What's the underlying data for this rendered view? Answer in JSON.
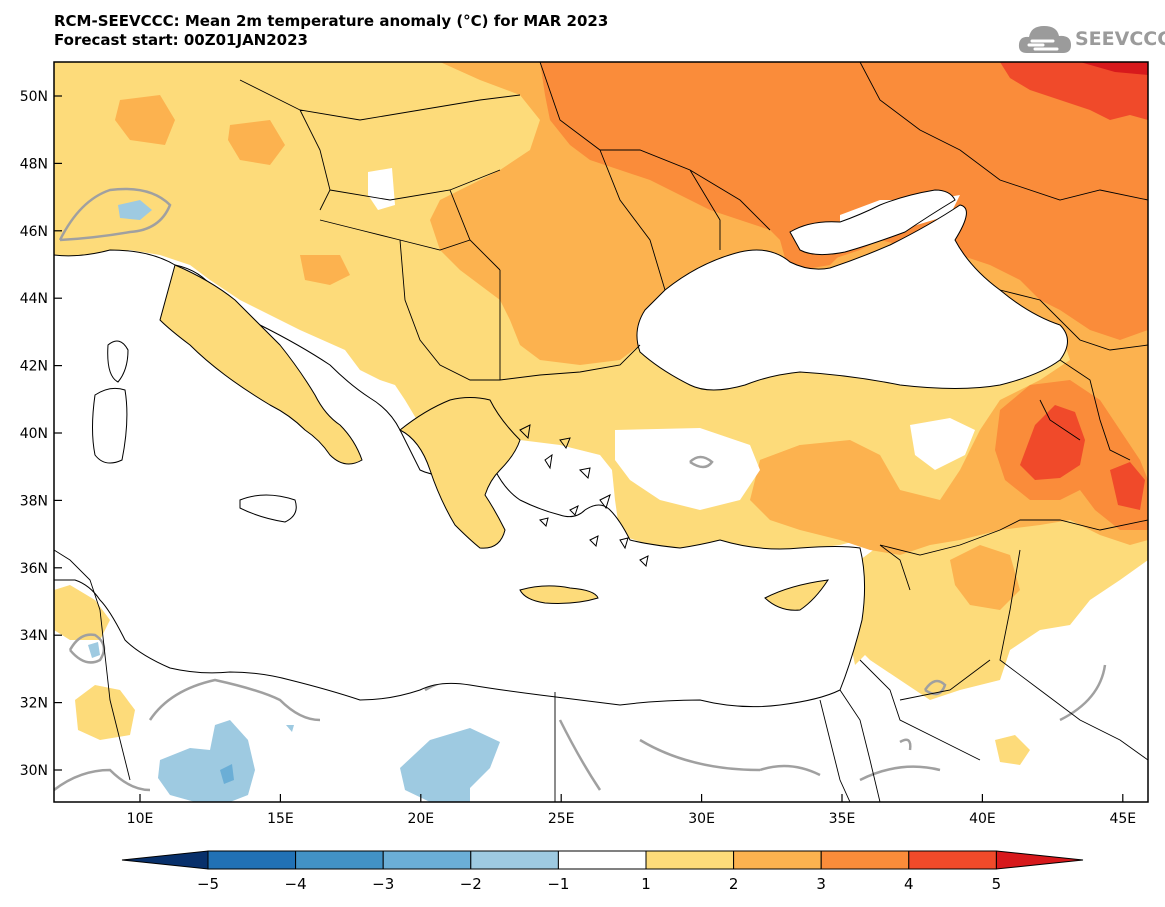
{
  "title": {
    "line1": "RCM-SEEVCCC: Mean 2m temperature anomaly (°C) for MAR 2023",
    "line2": "Forecast start: 00Z01JAN2023"
  },
  "logo": {
    "text": "SEEVCCC",
    "icon": "cloud-icon"
  },
  "colors": {
    "neg5": "#08306b",
    "neg4": "#2171b5",
    "neg3": "#4292c6",
    "neg2": "#6baed6",
    "neg1": "#9ecae1",
    "neutral": "#ffffff",
    "pos1": "#fddb7a",
    "pos2": "#fcb24f",
    "pos3": "#fa8c3a",
    "pos4": "#f04a2a",
    "pos5": "#d7191c",
    "coast": "#000000",
    "contour": "#a0a0a0"
  },
  "axes": {
    "lat_labels": [
      "50N",
      "48N",
      "46N",
      "44N",
      "42N",
      "40N",
      "38N",
      "36N",
      "34N",
      "32N",
      "30N"
    ],
    "lon_labels": [
      "10E",
      "15E",
      "20E",
      "25E",
      "30E",
      "35E",
      "40E",
      "45E"
    ],
    "lon_range": [
      7,
      46
    ],
    "lat_range": [
      29,
      51
    ]
  },
  "colorbar": {
    "labels": [
      "−5",
      "−4",
      "−3",
      "−2",
      "−1",
      "1",
      "2",
      "3",
      "4",
      "5"
    ]
  }
}
